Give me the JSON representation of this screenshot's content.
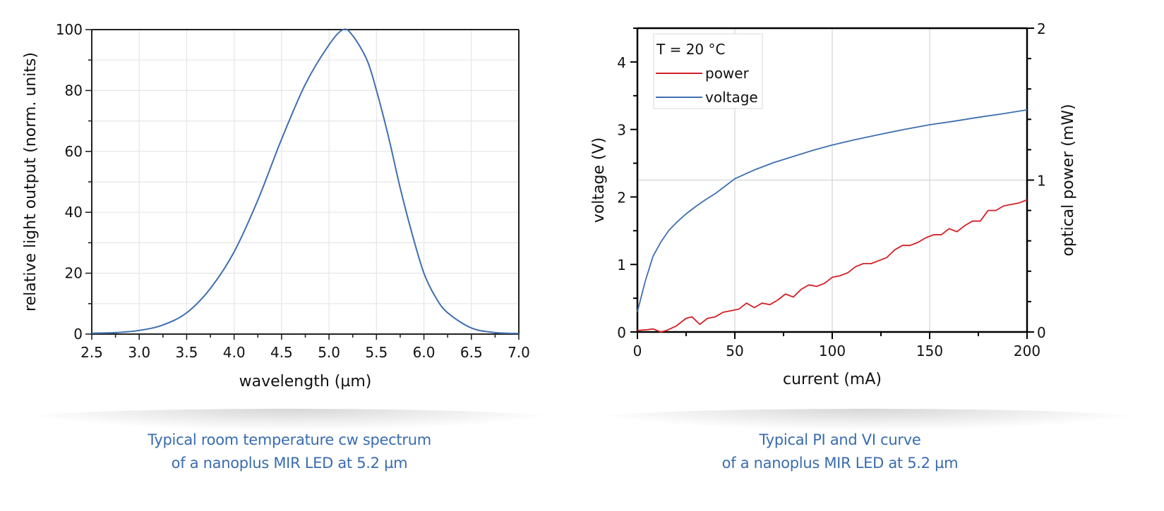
{
  "chart_data": [
    {
      "type": "line",
      "title": "",
      "xlabel": "wavelength (µm)",
      "ylabel": "relative light output (norm. units)",
      "xlim": [
        2.5,
        7.0
      ],
      "ylim": [
        0,
        100
      ],
      "xticks": [
        "2.5",
        "3.0",
        "3.5",
        "4.0",
        "4.5",
        "5.0",
        "5.5",
        "6.0",
        "6.5",
        "7.0"
      ],
      "yticks": [
        "0",
        "20",
        "40",
        "60",
        "80",
        "100"
      ],
      "grid": true,
      "series": [
        {
          "name": "spectrum",
          "color": "#3f6fb0",
          "x": [
            2.5,
            2.75,
            3.0,
            3.25,
            3.5,
            3.75,
            4.0,
            4.25,
            4.5,
            4.75,
            5.0,
            5.15,
            5.25,
            5.4,
            5.5,
            5.625,
            5.75,
            5.875,
            6.0,
            6.125,
            6.25,
            6.5,
            6.75,
            7.0
          ],
          "y": [
            0.3,
            0.5,
            1.2,
            3,
            7,
            15,
            27,
            44,
            64,
            82,
            95,
            100,
            98,
            90,
            80,
            65,
            48,
            33,
            20,
            12,
            7,
            2,
            0.5,
            0.2
          ]
        }
      ],
      "caption": [
        "Typical room temperature cw spectrum",
        "of a nanoplus MIR LED at 5.2 µm"
      ]
    },
    {
      "type": "line",
      "title": "",
      "xlabel": "current (mA)",
      "ylabel": "voltage (V)",
      "y2label": "optical power (mW)",
      "xlim": [
        0,
        200
      ],
      "ylim": [
        0,
        4.5
      ],
      "y2lim": [
        0,
        2
      ],
      "xticks": [
        "0",
        "50",
        "100",
        "150",
        "200"
      ],
      "yticks": [
        "0",
        "1",
        "2",
        "3",
        "4"
      ],
      "y2ticks": [
        "0",
        "1",
        "2"
      ],
      "grid": true,
      "legend": {
        "position": "top-left",
        "title": "T = 20 °C"
      },
      "series": [
        {
          "name": "power",
          "axis": "right",
          "color": "#d42027",
          "x": [
            0,
            5,
            8,
            12,
            15,
            20,
            25,
            28,
            32,
            36,
            40,
            44,
            48,
            52,
            56,
            60,
            64,
            68,
            72,
            76,
            80,
            84,
            88,
            92,
            96,
            100,
            104,
            108,
            112,
            116,
            120,
            124,
            128,
            132,
            136,
            140,
            144,
            148,
            152,
            156,
            160,
            164,
            168,
            172,
            176,
            180,
            184,
            188,
            192,
            196,
            200
          ],
          "y": [
            0.01,
            0.015,
            0.02,
            0,
            0.01,
            0.04,
            0.09,
            0.1,
            0.05,
            0.09,
            0.1,
            0.13,
            0.14,
            0.15,
            0.19,
            0.16,
            0.19,
            0.18,
            0.21,
            0.25,
            0.23,
            0.28,
            0.31,
            0.3,
            0.32,
            0.36,
            0.37,
            0.39,
            0.43,
            0.45,
            0.45,
            0.47,
            0.49,
            0.54,
            0.57,
            0.57,
            0.59,
            0.62,
            0.64,
            0.64,
            0.68,
            0.66,
            0.7,
            0.73,
            0.73,
            0.8,
            0.8,
            0.83,
            0.84,
            0.85,
            0.87
          ]
        },
        {
          "name": "voltage",
          "axis": "left",
          "color": "#3f6fb0",
          "x": [
            0,
            4,
            8,
            12,
            16,
            20,
            25,
            30,
            35,
            40,
            45,
            50,
            60,
            70,
            80,
            90,
            100,
            112,
            125,
            137,
            150,
            162,
            175,
            187,
            200
          ],
          "y": [
            0.3,
            0.75,
            1.12,
            1.33,
            1.5,
            1.62,
            1.75,
            1.86,
            1.96,
            2.05,
            2.16,
            2.27,
            2.4,
            2.51,
            2.6,
            2.69,
            2.77,
            2.85,
            2.93,
            3.0,
            3.07,
            3.12,
            3.18,
            3.23,
            3.29
          ]
        }
      ],
      "caption": [
        "Typical PI and VI curve",
        "of a nanoplus MIR LED at 5.2 µm"
      ]
    }
  ]
}
